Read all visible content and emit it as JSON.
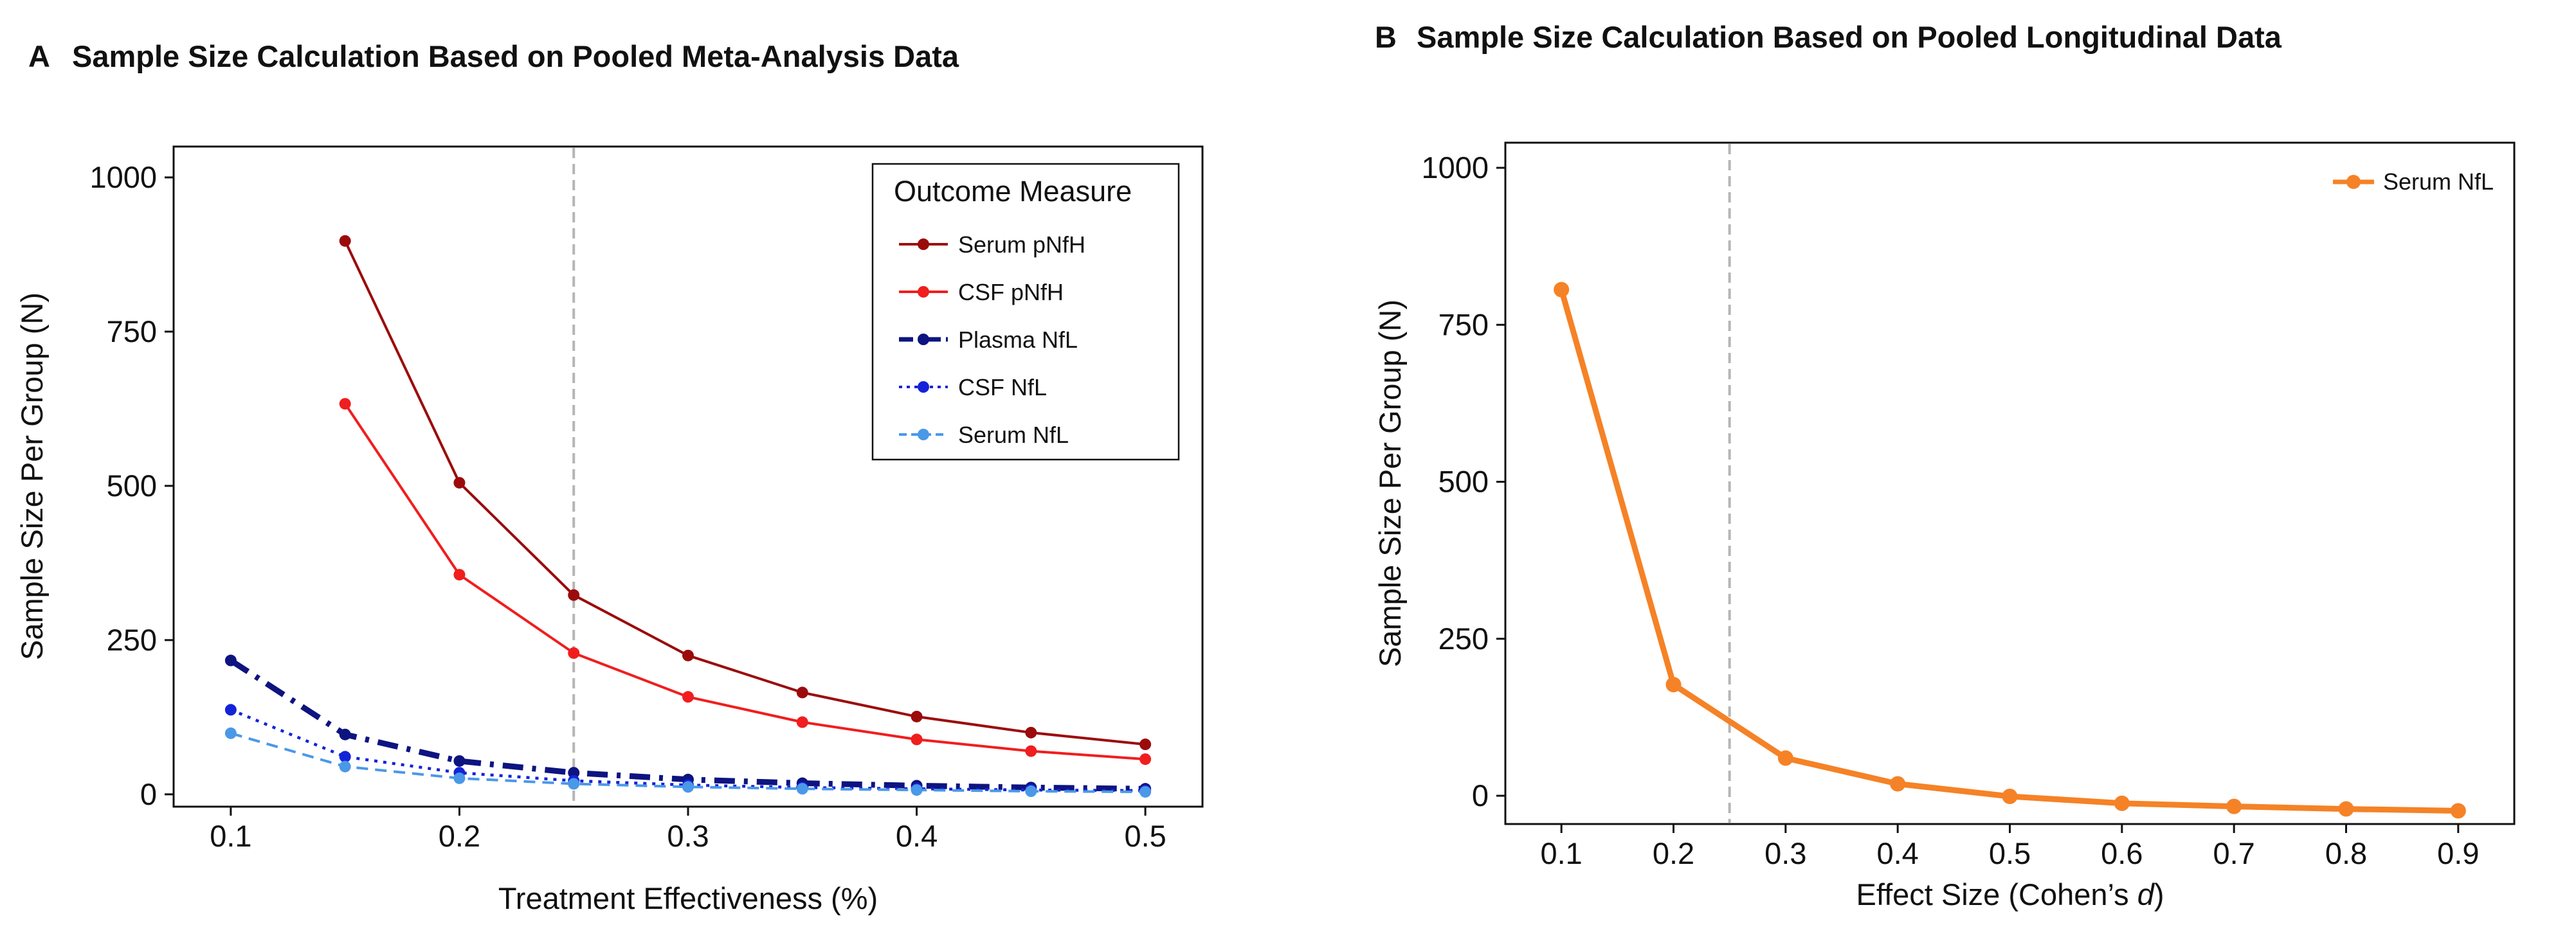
{
  "figure": {
    "panel_a_letter": "A",
    "panel_b_letter": "B"
  },
  "chart_data": [
    {
      "type": "line",
      "title": "Sample Size Calculation Based on Pooled Meta-Analysis Data",
      "xlabel": "Treatment Effectiveness (%)",
      "ylabel": "Sample Size Per Group (N)",
      "xlim": [
        0.075,
        0.525
      ],
      "ylim": [
        -20,
        1050
      ],
      "xticks": [
        0.1,
        0.2,
        0.3,
        0.4,
        0.5
      ],
      "xtick_labels": [
        "0.1",
        "0.2",
        "0.3",
        "0.4",
        "0.5"
      ],
      "yticks": [
        0,
        250,
        500,
        750,
        1000
      ],
      "ytick_labels": [
        "0",
        "250",
        "500",
        "750",
        "1000"
      ],
      "reference_line_x": 0.25,
      "legend_title": "Outcome Measure",
      "legend_position": "top-right",
      "x": [
        0.1,
        0.15,
        0.2,
        0.25,
        0.3,
        0.35,
        0.4,
        0.45,
        0.5
      ],
      "series": [
        {
          "name": "Serum pNfH",
          "color": "#9b0b0b",
          "dash": "solid",
          "x": [
            0.15,
            0.2,
            0.25,
            0.3,
            0.35,
            0.4,
            0.45,
            0.5
          ],
          "values": [
            897,
            505,
            323,
            225,
            165,
            126,
            100,
            81
          ]
        },
        {
          "name": "CSF pNfH",
          "color": "#f01e1e",
          "dash": "solid",
          "x": [
            0.15,
            0.2,
            0.25,
            0.3,
            0.35,
            0.4,
            0.45,
            0.5
          ],
          "values": [
            633,
            356,
            229,
            158,
            117,
            89,
            70,
            57
          ]
        },
        {
          "name": "Plasma NfL",
          "color": "#0d1480",
          "dash": "dashdot",
          "x": [
            0.1,
            0.15,
            0.2,
            0.25,
            0.3,
            0.35,
            0.4,
            0.45,
            0.5
          ],
          "values": [
            217,
            97,
            54,
            35,
            24,
            18,
            14,
            11,
            9
          ]
        },
        {
          "name": "CSF NfL",
          "color": "#1423d8",
          "dash": "dotted",
          "x": [
            0.1,
            0.15,
            0.2,
            0.25,
            0.3,
            0.35,
            0.4,
            0.45,
            0.5
          ],
          "values": [
            137,
            61,
            35,
            22,
            15,
            11,
            9,
            7,
            6
          ]
        },
        {
          "name": "Serum NfL",
          "color": "#4a98e8",
          "dash": "dashed",
          "x": [
            0.1,
            0.15,
            0.2,
            0.25,
            0.3,
            0.35,
            0.4,
            0.45,
            0.5
          ],
          "values": [
            99,
            45,
            26,
            17,
            12,
            9,
            7,
            5,
            4
          ]
        }
      ]
    },
    {
      "type": "line",
      "title": "Sample Size Calculation Based on Pooled Longitudinal Data",
      "xlabel_prefix": "Effect Size (Cohen’s ",
      "xlabel_var": "d",
      "xlabel_suffix": ")",
      "ylabel": "Sample Size Per Group (N)",
      "xlim": [
        0.05,
        0.95
      ],
      "ylim": [
        -45,
        1040
      ],
      "xticks": [
        0.1,
        0.2,
        0.3,
        0.4,
        0.5,
        0.6,
        0.7,
        0.8,
        0.9
      ],
      "xtick_labels": [
        "0.1",
        "0.2",
        "0.3",
        "0.4",
        "0.5",
        "0.6",
        "0.7",
        "0.8",
        "0.9"
      ],
      "yticks": [
        0,
        250,
        500,
        750,
        1000
      ],
      "ytick_labels": [
        "0",
        "250",
        "500",
        "750",
        "1000"
      ],
      "reference_line_x": 0.25,
      "legend_position": "top-right",
      "x": [
        0.1,
        0.2,
        0.3,
        0.4,
        0.5,
        0.6,
        0.7,
        0.8,
        0.9
      ],
      "series": [
        {
          "name": "Serum NfL",
          "color": "#f58226",
          "dash": "solid",
          "x": [
            0.1,
            0.2,
            0.3,
            0.4,
            0.5,
            0.6,
            0.7,
            0.8,
            0.9
          ],
          "values": [
            806,
            177,
            60,
            19,
            -1,
            -12,
            -17,
            -21,
            -24
          ]
        }
      ]
    }
  ]
}
